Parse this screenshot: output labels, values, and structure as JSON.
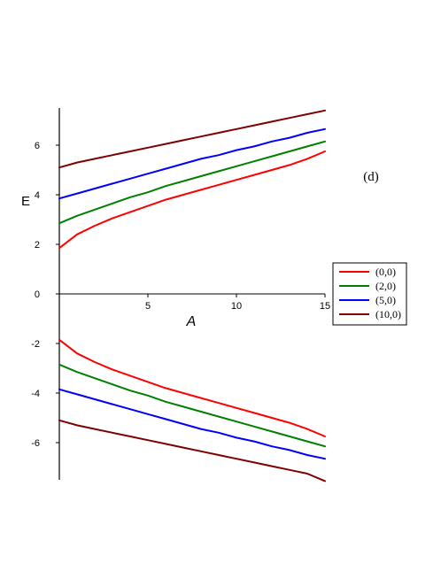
{
  "chart_data": {
    "type": "line",
    "panel_label": "(d)",
    "xlabel": "A",
    "ylabel": "E",
    "xlim": [
      0,
      15
    ],
    "ylim": [
      -7.5,
      7.5
    ],
    "x_ticks": [
      5,
      10,
      15
    ],
    "y_ticks": [
      -6,
      -4,
      -2,
      0,
      2,
      4,
      6
    ],
    "grid": false,
    "legend_position": "right",
    "x": [
      0,
      1,
      2,
      3,
      4,
      5,
      6,
      7,
      8,
      9,
      10,
      11,
      12,
      13,
      14,
      15
    ],
    "series": [
      {
        "name": "(0,0)",
        "color": "#ff0000",
        "upper": [
          1.85,
          2.4,
          2.75,
          3.05,
          3.3,
          3.55,
          3.8,
          4.0,
          4.2,
          4.4,
          4.6,
          4.8,
          5.0,
          5.2,
          5.45,
          5.75
        ],
        "lower": [
          -1.85,
          -2.4,
          -2.75,
          -3.05,
          -3.3,
          -3.55,
          -3.8,
          -4.0,
          -4.2,
          -4.4,
          -4.6,
          -4.8,
          -5.0,
          -5.2,
          -5.45,
          -5.75
        ]
      },
      {
        "name": "(2,0)",
        "color": "#008000",
        "upper": [
          2.85,
          3.15,
          3.4,
          3.65,
          3.9,
          4.1,
          4.35,
          4.55,
          4.75,
          4.95,
          5.15,
          5.35,
          5.55,
          5.75,
          5.95,
          6.15
        ],
        "lower": [
          -2.85,
          -3.15,
          -3.4,
          -3.65,
          -3.9,
          -4.1,
          -4.35,
          -4.55,
          -4.75,
          -4.95,
          -5.15,
          -5.35,
          -5.55,
          -5.75,
          -5.95,
          -6.15
        ]
      },
      {
        "name": "(5,0)",
        "color": "#0000ff",
        "upper": [
          3.85,
          4.05,
          4.25,
          4.45,
          4.65,
          4.85,
          5.05,
          5.25,
          5.45,
          5.6,
          5.8,
          5.95,
          6.15,
          6.3,
          6.5,
          6.65
        ],
        "lower": [
          -3.85,
          -4.05,
          -4.25,
          -4.45,
          -4.65,
          -4.85,
          -5.05,
          -5.25,
          -5.45,
          -5.6,
          -5.8,
          -5.95,
          -6.15,
          -6.3,
          -6.5,
          -6.65
        ]
      },
      {
        "name": "(10,0)",
        "color": "#800000",
        "upper": [
          5.1,
          5.3,
          5.45,
          5.6,
          5.75,
          5.9,
          6.05,
          6.2,
          6.35,
          6.5,
          6.65,
          6.8,
          6.95,
          7.1,
          7.25,
          7.4
        ],
        "lower": [
          -5.1,
          -5.3,
          -5.45,
          -5.6,
          -5.75,
          -5.9,
          -6.05,
          -6.2,
          -6.35,
          -6.5,
          -6.65,
          -6.8,
          -6.95,
          -7.1,
          -7.25,
          -7.55
        ]
      }
    ]
  }
}
